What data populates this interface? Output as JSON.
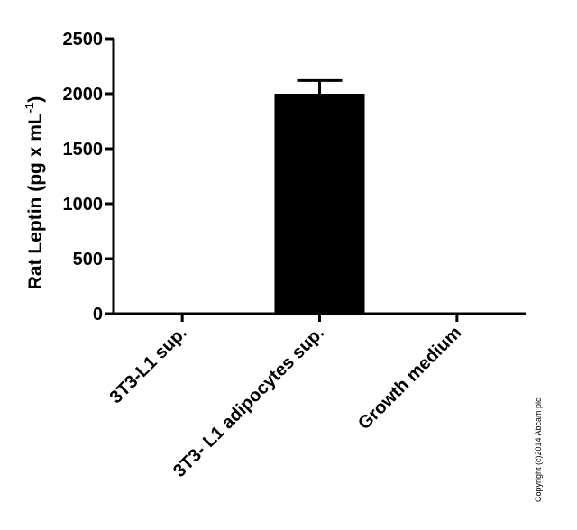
{
  "chart_data": {
    "type": "bar",
    "categories": [
      "3T3-L1 sup.",
      "3T3- L1 adipocytes sup.",
      "Growth medium"
    ],
    "values": [
      0,
      2000,
      0
    ],
    "error_bars": [
      0,
      120,
      0
    ],
    "title": "",
    "xlabel": "",
    "ylabel": "Rat Leptin (pg x mL",
    "ylabel_superscript": "-1",
    "ylabel_close": ")",
    "ylim": [
      0,
      2500
    ],
    "yticks": [
      0,
      500,
      1000,
      1500,
      2000,
      2500
    ],
    "grid": false,
    "bar_color": "#000000"
  },
  "copyright": "Copyright (c)2014 Abcam plc"
}
